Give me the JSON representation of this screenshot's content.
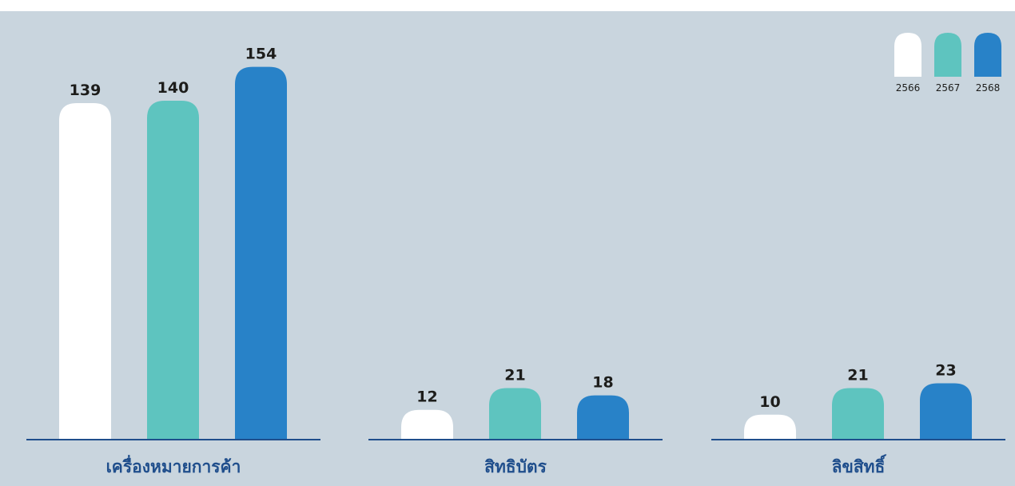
{
  "colors": {
    "background": "#c9d5de",
    "axis": "#1f4e8c",
    "category_text": "#1f4e8c",
    "value_text": "#1d1d1b"
  },
  "chart_data": {
    "type": "bar",
    "categories": [
      "เครื่องหมายการค้า",
      "สิทธิบัตร",
      "ลิขสิทธิ์"
    ],
    "series": [
      {
        "name": "2566",
        "color": "#ffffff",
        "values": [
          139,
          12,
          10
        ]
      },
      {
        "name": "2567",
        "color": "#5ec4bf",
        "values": [
          140,
          21,
          21
        ]
      },
      {
        "name": "2568",
        "color": "#2882c8",
        "values": [
          154,
          18,
          23
        ]
      }
    ],
    "ylim": [
      0,
      160
    ],
    "grid": false,
    "legend_position": "top-right",
    "data_labels": true
  }
}
